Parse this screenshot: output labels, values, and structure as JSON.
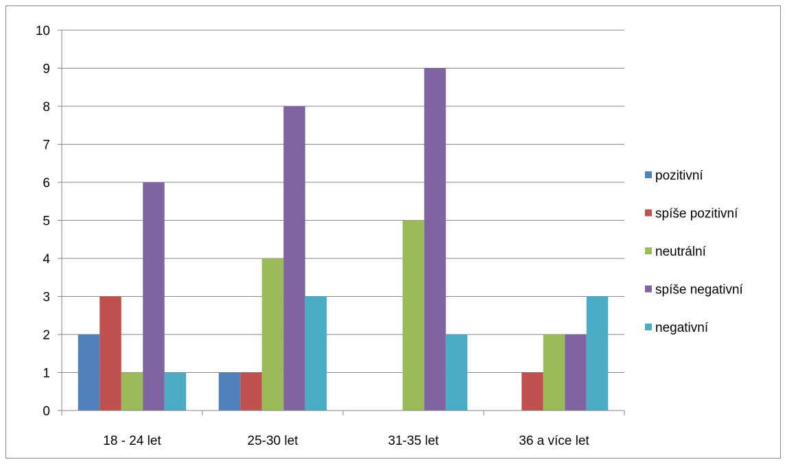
{
  "chart_data": {
    "type": "bar",
    "title": "",
    "xlabel": "",
    "ylabel": "",
    "ylim": [
      0,
      10
    ],
    "yticks": [
      "0",
      "1",
      "2",
      "3",
      "4",
      "5",
      "6",
      "7",
      "8",
      "9",
      "10"
    ],
    "grid": true,
    "legend_position": "right",
    "categories": [
      "18 - 24 let",
      "25-30 let",
      "31-35 let",
      "36 a více let"
    ],
    "series": [
      {
        "name": "pozitivní",
        "color": "#4F81BD",
        "values": [
          2,
          1,
          0,
          0
        ]
      },
      {
        "name": "spíše pozitivní",
        "color": "#C0504D",
        "values": [
          3,
          1,
          0,
          1
        ]
      },
      {
        "name": "neutrální",
        "color": "#9BBB59",
        "values": [
          1,
          4,
          5,
          2
        ]
      },
      {
        "name": "spíše negativní",
        "color": "#8064A2",
        "values": [
          6,
          8,
          9,
          2
        ]
      },
      {
        "name": "negativní",
        "color": "#4BACC6",
        "values": [
          1,
          3,
          2,
          3
        ]
      }
    ]
  }
}
